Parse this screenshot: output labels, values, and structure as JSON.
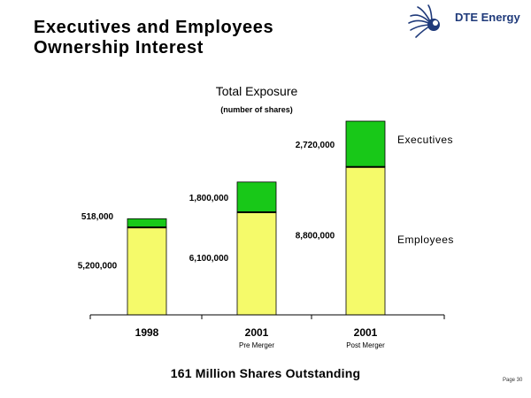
{
  "slide": {
    "title_line1": "Executives and Employees",
    "title_line2": "Ownership Interest",
    "footer": "161 Million Shares Outstanding",
    "page": "Page 30",
    "logo_text": "DTE Energy"
  },
  "colors": {
    "employees": "#f5fa6a",
    "executives": "#18c818",
    "logo": "#1f3a7a"
  },
  "chart_data": {
    "type": "bar",
    "stacked": true,
    "title": "Total Exposure",
    "subtitle": "(number of shares)",
    "categories": [
      "1998",
      "2001",
      "2001"
    ],
    "category_sublabels": [
      "",
      "Pre Merger",
      "Post Merger"
    ],
    "series": [
      {
        "name": "Employees",
        "values": [
          5200000,
          6100000,
          8800000
        ],
        "labels": [
          "5,200,000",
          "6,100,000",
          "8,800,000"
        ]
      },
      {
        "name": "Executives",
        "values": [
          518000,
          1800000,
          2720000
        ],
        "labels": [
          "518,000",
          "1,800,000",
          "2,720,000"
        ]
      }
    ],
    "ylim": [
      0,
      11520000
    ],
    "grid": false,
    "legend": "right"
  }
}
